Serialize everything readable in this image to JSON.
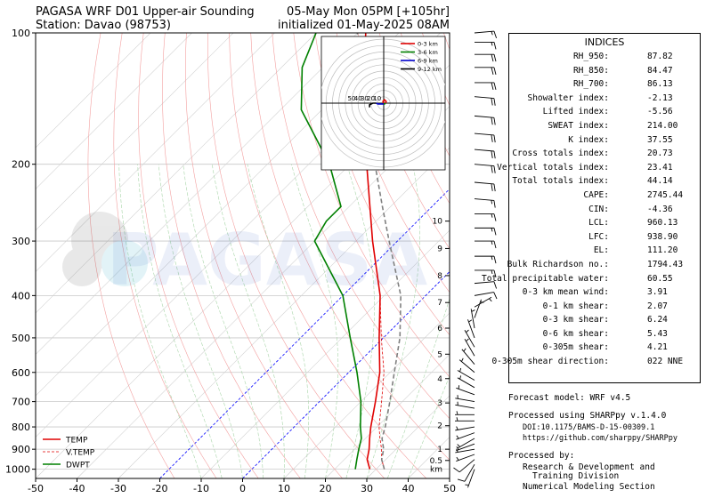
{
  "header": {
    "title_left_1": "PAGASA WRF D01 Upper-air Sounding",
    "title_left_2": "Station: Davao (98753)",
    "title_right_1": "05-May Mon 05PM [+105hr]",
    "title_right_2": "initialized 01-May-2025 08AM"
  },
  "watermark": "PAGASA",
  "colors": {
    "temp": "#e00000",
    "vtemp": "#e00000",
    "dwpt": "#008000",
    "parcel": "#808080",
    "dry_adiabat": "#f3a0a0",
    "moist_adiabat": "#a8d5a8",
    "isotherm_zero": "#0000ff",
    "hodo_0_3": "#e00000",
    "hodo_3_6": "#008000",
    "hodo_6_9": "#0000cc",
    "hodo_9_12": "#000000"
  },
  "chart_data": {
    "type": "line",
    "xlim": [
      -50,
      50
    ],
    "ylim": [
      1050,
      100
    ],
    "x_ticks": [
      "-50",
      "-40",
      "-30",
      "-20",
      "-10",
      "0",
      "10",
      "20",
      "30",
      "40",
      "50"
    ],
    "y_ticks": [
      "100",
      "200",
      "300",
      "400",
      "500",
      "600",
      "700",
      "800",
      "900",
      "1000"
    ],
    "y_scale": "log",
    "legend": [
      "TEMP",
      "V.TEMP",
      "DWPT"
    ],
    "legend_position": "lower-left",
    "height_labels": [
      "0.5",
      "1",
      "2",
      "3",
      "4",
      "5",
      "6",
      "7",
      "8",
      "9",
      "10"
    ],
    "height_unit": "km",
    "series": [
      {
        "name": "TEMP",
        "pressure": [
          1000,
          950,
          900,
          850,
          800,
          700,
          600,
          500,
          400,
          300,
          250,
          200,
          150,
          120,
          100
        ],
        "values": [
          28.5,
          25.5,
          23.5,
          21,
          18.5,
          13.5,
          7.5,
          -1,
          -11,
          -26,
          -35,
          -46,
          -60,
          -70,
          -78
        ]
      },
      {
        "name": "V.TEMP",
        "pressure": [
          1000,
          950,
          900,
          850,
          800,
          700,
          600,
          500,
          400,
          300,
          250,
          200,
          150,
          120,
          100
        ],
        "values": [
          32,
          29,
          26.5,
          23.5,
          20.5,
          15,
          8.5,
          -0.5,
          -11,
          -26,
          -35,
          -46,
          -60,
          -70,
          -78
        ]
      },
      {
        "name": "DWPT",
        "pressure": [
          1000,
          950,
          900,
          850,
          800,
          700,
          600,
          500,
          400,
          300,
          270,
          250,
          200,
          150,
          120,
          100
        ],
        "values": [
          25,
          23,
          21,
          19,
          16,
          10,
          2,
          -8,
          -20,
          -40,
          -42,
          -42,
          -55,
          -75,
          -85,
          -90
        ]
      },
      {
        "name": "",
        "pressure": [
          1000,
          950,
          900,
          850,
          800,
          700,
          600,
          500,
          400,
          300,
          250,
          200,
          150,
          120,
          100
        ],
        "values": [
          32,
          29,
          27,
          24,
          22,
          17,
          11,
          4,
          -6,
          -22,
          -32,
          -44,
          -60,
          -71,
          -80
        ]
      }
    ],
    "hodograph": {
      "rings": [
        "10",
        "20",
        "30",
        "40",
        "50"
      ],
      "legend": [
        "0-3 km",
        "3-6 km",
        "6-9 km",
        "9-12 km"
      ],
      "segments": [
        {
          "name": "0-3 km",
          "u": [
            0,
            -1,
            1,
            3,
            2
          ],
          "v": [
            0,
            2,
            4,
            2,
            0
          ]
        },
        {
          "name": "3-6 km",
          "u": [
            2,
            1,
            0
          ],
          "v": [
            0,
            -1,
            -1
          ]
        },
        {
          "name": "6-9 km",
          "u": [
            0,
            -3,
            -7,
            -9
          ],
          "v": [
            -1,
            -1,
            -1,
            0
          ]
        },
        {
          "name": "9-12 km",
          "u": [
            -9,
            -13,
            -17,
            -17
          ],
          "v": [
            0,
            0,
            -2,
            -5
          ]
        }
      ]
    },
    "wind_barbs": [
      {
        "p": 1000,
        "speed": 5,
        "dir": 200
      },
      {
        "p": 975,
        "speed": 8,
        "dir": 210
      },
      {
        "p": 950,
        "speed": 8,
        "dir": 230
      },
      {
        "p": 925,
        "speed": 7,
        "dir": 250
      },
      {
        "p": 900,
        "speed": 6,
        "dir": 260
      },
      {
        "p": 875,
        "speed": 6,
        "dir": 250
      },
      {
        "p": 850,
        "speed": 5,
        "dir": 240
      },
      {
        "p": 825,
        "speed": 5,
        "dir": 250
      },
      {
        "p": 800,
        "speed": 5,
        "dir": 260
      },
      {
        "p": 775,
        "speed": 5,
        "dir": 270
      },
      {
        "p": 750,
        "speed": 5,
        "dir": 270
      },
      {
        "p": 725,
        "speed": 5,
        "dir": 280
      },
      {
        "p": 700,
        "speed": 5,
        "dir": 280
      },
      {
        "p": 675,
        "speed": 5,
        "dir": 290
      },
      {
        "p": 650,
        "speed": 6,
        "dir": 300
      },
      {
        "p": 625,
        "speed": 6,
        "dir": 300
      },
      {
        "p": 600,
        "speed": 7,
        "dir": 310
      },
      {
        "p": 575,
        "speed": 6,
        "dir": 320
      },
      {
        "p": 550,
        "speed": 5,
        "dir": 330
      },
      {
        "p": 525,
        "speed": 5,
        "dir": 330
      },
      {
        "p": 500,
        "speed": 5,
        "dir": 340
      },
      {
        "p": 475,
        "speed": 5,
        "dir": 350
      },
      {
        "p": 450,
        "speed": 5,
        "dir": 20
      },
      {
        "p": 425,
        "speed": 5,
        "dir": 60
      },
      {
        "p": 400,
        "speed": 10,
        "dir": 80
      },
      {
        "p": 375,
        "speed": 12,
        "dir": 85
      },
      {
        "p": 350,
        "speed": 14,
        "dir": 90
      },
      {
        "p": 325,
        "speed": 15,
        "dir": 90
      },
      {
        "p": 300,
        "speed": 15,
        "dir": 90
      },
      {
        "p": 280,
        "speed": 15,
        "dir": 90
      },
      {
        "p": 260,
        "speed": 15,
        "dir": 90
      },
      {
        "p": 240,
        "speed": 17,
        "dir": 95
      },
      {
        "p": 220,
        "speed": 18,
        "dir": 95
      },
      {
        "p": 200,
        "speed": 20,
        "dir": 95
      },
      {
        "p": 185,
        "speed": 20,
        "dir": 95
      },
      {
        "p": 170,
        "speed": 20,
        "dir": 95
      },
      {
        "p": 155,
        "speed": 20,
        "dir": 95
      },
      {
        "p": 140,
        "speed": 20,
        "dir": 95
      },
      {
        "p": 130,
        "speed": 20,
        "dir": 90
      },
      {
        "p": 120,
        "speed": 20,
        "dir": 90
      },
      {
        "p": 112,
        "speed": 18,
        "dir": 90
      },
      {
        "p": 105,
        "speed": 16,
        "dir": 90
      },
      {
        "p": 100,
        "speed": 15,
        "dir": 85
      }
    ]
  },
  "indices": {
    "heading": "INDICES",
    "rows": [
      {
        "label": "RH_950:",
        "value": "87.82"
      },
      {
        "label": "RH_850:",
        "value": "84.47"
      },
      {
        "label": "RH_700:",
        "value": "86.13"
      },
      {
        "label": "Showalter index:",
        "value": "-2.13"
      },
      {
        "label": "Lifted index:",
        "value": "-5.56"
      },
      {
        "label": "SWEAT index:",
        "value": "214.00"
      },
      {
        "label": "K index:",
        "value": "37.55"
      },
      {
        "label": "Cross totals index:",
        "value": "20.73"
      },
      {
        "label": "Vertical totals index:",
        "value": "23.41"
      },
      {
        "label": "Total totals index:",
        "value": "44.14"
      },
      {
        "label": "CAPE:",
        "value": "2745.44"
      },
      {
        "label": "CIN:",
        "value": "-4.36"
      },
      {
        "label": "LCL:",
        "value": "960.13"
      },
      {
        "label": "LFC:",
        "value": "938.90"
      },
      {
        "label": "EL:",
        "value": "111.20"
      },
      {
        "label": "Bulk Richardson no.:",
        "value": "1794.43"
      },
      {
        "label": "Total precipitable water:",
        "value": "60.55"
      },
      {
        "label": "0-3 km mean wind:",
        "value": "3.91"
      },
      {
        "label": "0-1 km shear:",
        "value": "2.07"
      },
      {
        "label": "0-3 km shear:",
        "value": "6.24"
      },
      {
        "label": "0-6 km shear:",
        "value": "5.43"
      },
      {
        "label": "0-305m shear:",
        "value": "4.21"
      },
      {
        "label": "0-305m shear direction:",
        "value": "022 NNE"
      }
    ]
  },
  "footer": {
    "forecast_model": "Forecast model: WRF v4.5",
    "processed_using": "Processed using SHARPpy v.1.4.0",
    "doi": "DOI:10.1175/BAMS-D-15-00309.1",
    "github": "https://github.com/sharppy/SHARPpy",
    "processed_by": "Processed by:",
    "org_1": "Research & Development and",
    "org_2": "Training Division",
    "org_3": "Numerical Modeling Section"
  }
}
